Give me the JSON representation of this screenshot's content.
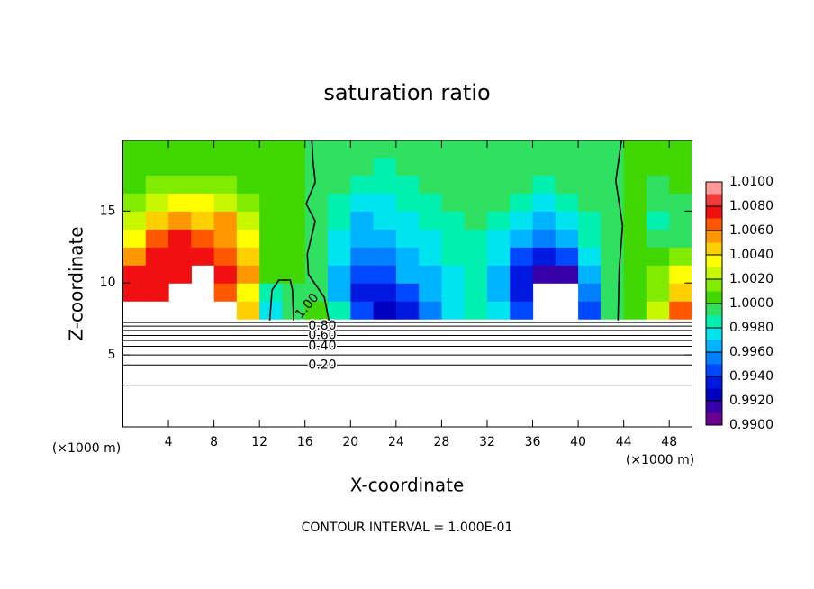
{
  "chart_data": {
    "type": "contour",
    "title": "saturation ratio",
    "x_label": "X-coordinate",
    "y_label": "Z-coordinate",
    "x_unit_label": "(×1000 m)",
    "y_unit_label": "(×1000 m)",
    "footer": "CONTOUR INTERVAL = 1.000E-01",
    "xlim": [
      0,
      50
    ],
    "ylim": [
      0,
      19.9
    ],
    "xticks": [
      4,
      8,
      12,
      16,
      20,
      24,
      28,
      32,
      36,
      40,
      44,
      48
    ],
    "yticks": [
      5,
      10,
      15
    ],
    "field": {
      "x_edges": [
        0,
        2,
        4,
        6,
        8,
        10,
        12,
        14,
        16,
        18,
        20,
        22,
        24,
        26,
        28,
        30,
        32,
        34,
        36,
        38,
        40,
        42,
        44,
        46,
        48,
        50
      ],
      "z_edges": [
        7.5,
        8.75,
        10,
        11.25,
        12.5,
        13.75,
        15,
        16.25,
        17.5,
        18.75,
        19.9
      ],
      "values": [
        [
          null,
          null,
          null,
          null,
          null,
          1.004,
          0.9975,
          0.9995,
          1.0,
          0.998,
          0.994,
          0.9925,
          0.993,
          0.995,
          0.997,
          0.998,
          0.9975,
          0.994,
          null,
          null,
          0.9945,
          0.9995,
          1.0002,
          1.0025,
          1.006
        ],
        [
          1.007,
          1.007,
          null,
          null,
          1.006,
          1.003,
          0.9985,
          0.9998,
          0.9995,
          0.9965,
          0.9935,
          0.993,
          0.9945,
          0.996,
          0.997,
          0.998,
          0.9965,
          0.993,
          null,
          null,
          0.9955,
          0.9995,
          1.0,
          1.0015,
          1.004
        ],
        [
          1.007,
          1.0075,
          1.007,
          null,
          1.007,
          1.005,
          1.0005,
          1.0,
          0.9995,
          0.9965,
          0.994,
          0.9945,
          0.996,
          0.9965,
          0.9975,
          0.998,
          0.9965,
          0.9935,
          0.991,
          0.9915,
          0.996,
          0.9995,
          1.0,
          1.0015,
          1.003
        ],
        [
          1.005,
          1.0075,
          1.0075,
          1.007,
          1.0065,
          1.004,
          1.0008,
          1.0,
          0.9995,
          0.997,
          0.9955,
          0.995,
          0.9965,
          0.997,
          0.998,
          0.998,
          0.997,
          0.9945,
          0.993,
          0.9945,
          0.997,
          0.9995,
          1.0,
          1.0005,
          1.001
        ],
        [
          1.003,
          1.006,
          1.0075,
          1.0065,
          1.005,
          1.003,
          1.0008,
          1.0,
          0.9995,
          0.9975,
          0.9965,
          0.996,
          0.997,
          0.9975,
          0.998,
          0.9985,
          0.9975,
          0.996,
          0.995,
          0.9965,
          0.998,
          0.9995,
          1.0,
          0.9995,
          0.9995
        ],
        [
          1.002,
          1.004,
          1.005,
          1.004,
          1.005,
          1.002,
          1.0005,
          1.0,
          0.9995,
          0.998,
          0.9965,
          0.997,
          0.9975,
          0.998,
          0.9985,
          0.999,
          0.998,
          0.997,
          0.996,
          0.997,
          0.9985,
          0.9995,
          1.0,
          0.9985,
          0.999
        ],
        [
          1.001,
          1.002,
          1.003,
          1.003,
          1.0025,
          1.001,
          1.0003,
          1.0,
          0.9995,
          0.9985,
          0.9975,
          0.997,
          0.998,
          0.9985,
          0.999,
          0.9992,
          0.999,
          0.998,
          0.9975,
          0.998,
          0.999,
          0.9995,
          1.0,
          0.999,
          0.9995
        ],
        [
          1.0005,
          1.001,
          1.0015,
          1.0015,
          1.0012,
          1.0005,
          1.0002,
          1.0,
          0.9995,
          0.999,
          0.998,
          0.998,
          0.9985,
          0.999,
          0.9993,
          0.9995,
          0.9993,
          0.999,
          0.9985,
          0.999,
          0.9993,
          0.9998,
          1.0,
          0.9998,
          1.0
        ],
        [
          1.0003,
          1.0005,
          1.0008,
          1.0008,
          1.0005,
          1.0003,
          1.0001,
          1.0,
          0.9997,
          0.9993,
          0.999,
          0.9988,
          0.999,
          0.9993,
          0.9995,
          0.9997,
          0.9996,
          0.9995,
          0.9993,
          0.9993,
          0.9995,
          0.9998,
          1.0,
          1.0,
          1.0
        ],
        [
          1.0002,
          1.0003,
          1.0004,
          1.0004,
          1.0003,
          1.0002,
          1.0001,
          1.0,
          0.9998,
          0.9996,
          0.9995,
          0.9994,
          0.9995,
          0.9996,
          0.9997,
          0.9998,
          0.9998,
          0.9997,
          0.9996,
          0.9996,
          0.9997,
          0.9999,
          1.0,
          1.0,
          1.0
        ]
      ]
    },
    "colorbar": {
      "levels": [
        0.99,
        0.991,
        0.992,
        0.993,
        0.994,
        0.995,
        0.996,
        0.997,
        0.998,
        0.999,
        1.0,
        1.001,
        1.002,
        1.003,
        1.004,
        1.005,
        1.006,
        1.007,
        1.008,
        1.009,
        1.01
      ],
      "colors": [
        "#6a0090",
        "#3800a8",
        "#0000c0",
        "#0018e0",
        "#0048ff",
        "#0080ff",
        "#00b4ff",
        "#00e4f0",
        "#00f0b0",
        "#30e060",
        "#40d800",
        "#80ec00",
        "#c8f800",
        "#ffff00",
        "#ffd000",
        "#ff9800",
        "#ff5800",
        "#f01010",
        "#f03c3c",
        "#ff9898"
      ],
      "ticks": [
        {
          "value": 1.01,
          "label": "1.0100"
        },
        {
          "value": 1.008,
          "label": "1.0080"
        },
        {
          "value": 1.006,
          "label": "1.0060"
        },
        {
          "value": 1.004,
          "label": "1.0040"
        },
        {
          "value": 1.002,
          "label": "1.0020"
        },
        {
          "value": 1.0,
          "label": "1.0000"
        },
        {
          "value": 0.998,
          "label": "0.9980"
        },
        {
          "value": 0.996,
          "label": "0.9960"
        },
        {
          "value": 0.994,
          "label": "0.9940"
        },
        {
          "value": 0.992,
          "label": "0.9920"
        },
        {
          "value": 0.99,
          "label": "0.9900"
        }
      ]
    },
    "contour_lines": [
      {
        "level": 0.1,
        "z": 2.9
      },
      {
        "level": {
          "value": 0.2,
          "label": "0.20"
        },
        "z": 4.3
      },
      {
        "level": 0.3,
        "z": 5.0
      },
      {
        "level": {
          "value": 0.4,
          "label": "0.40"
        },
        "z": 5.6
      },
      {
        "level": 0.5,
        "z": 6.0
      },
      {
        "level": {
          "value": 0.6,
          "label": "0.60"
        },
        "z": 6.35
      },
      {
        "level": 0.7,
        "z": 6.7
      },
      {
        "level": {
          "value": 0.8,
          "label": "0.80"
        },
        "z": 7.0
      },
      {
        "level": 0.9,
        "z": 7.25
      }
    ],
    "isoline": {
      "level": {
        "value": 1.0,
        "label": "1.00"
      },
      "paths": [
        {
          "x": [
            18.1,
            17.7,
            16.3,
            16.2,
            16.9,
            16.1,
            16.9,
            16.7,
            16.6
          ],
          "z": [
            7.4,
            9,
            10.6,
            12,
            14.3,
            15.5,
            17,
            18.5,
            19.9
          ]
        },
        {
          "x": [
            43.5,
            43.6,
            43.9,
            43.3,
            43.8
          ],
          "z": [
            7.4,
            10.9,
            14,
            17.1,
            19.9
          ]
        },
        {
          "x": [
            12.9,
            13.1,
            13.7,
            14.7,
            14.9,
            15.0
          ],
          "z": [
            7.4,
            9.5,
            10.2,
            10.2,
            9.5,
            7.4
          ]
        }
      ]
    }
  }
}
